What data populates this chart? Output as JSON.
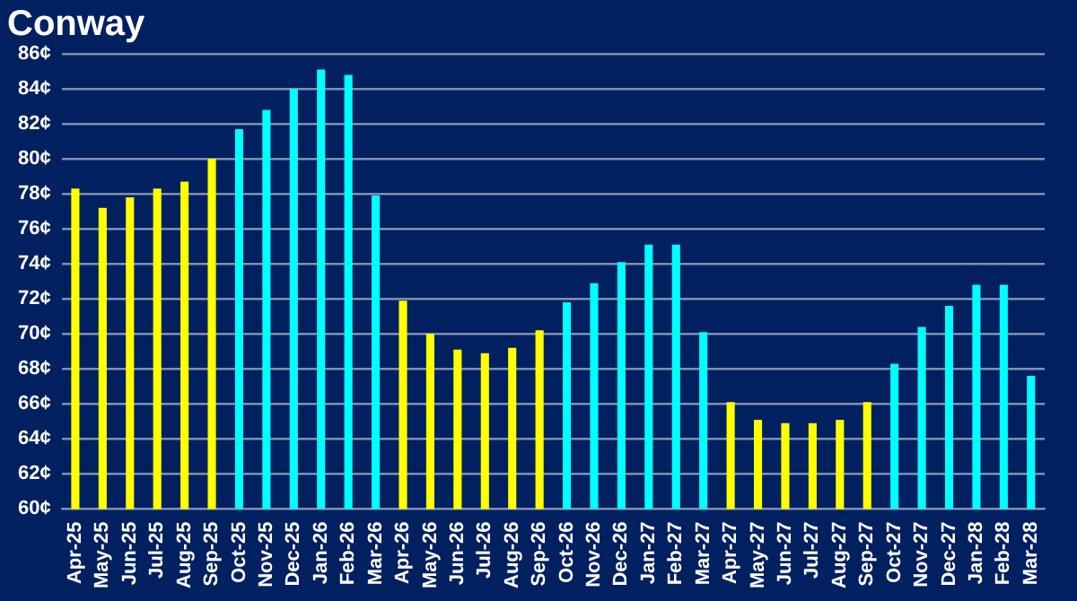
{
  "chart_data": {
    "type": "bar",
    "title": "Conway",
    "categories": [
      "Apr-25",
      "May-25",
      "Jun-25",
      "Jul-25",
      "Aug-25",
      "Sep-25",
      "Oct-25",
      "Nov-25",
      "Dec-25",
      "Jan-26",
      "Feb-26",
      "Mar-26",
      "Apr-26",
      "May-26",
      "Jun-26",
      "Jul-26",
      "Aug-26",
      "Sep-26",
      "Oct-26",
      "Nov-26",
      "Dec-26",
      "Jan-27",
      "Feb-27",
      "Mar-27",
      "Apr-27",
      "May-27",
      "Jun-27",
      "Jul-27",
      "Aug-27",
      "Sep-27",
      "Oct-27",
      "Nov-27",
      "Dec-27",
      "Jan-28",
      "Feb-28",
      "Mar-28"
    ],
    "values": [
      78.3,
      77.2,
      77.8,
      78.3,
      78.7,
      80.0,
      81.7,
      82.8,
      84.0,
      85.1,
      84.8,
      77.9,
      71.9,
      70.0,
      69.1,
      68.9,
      69.2,
      70.2,
      71.8,
      72.9,
      74.1,
      75.1,
      75.1,
      70.1,
      66.1,
      65.1,
      64.9,
      64.9,
      65.1,
      66.1,
      68.3,
      70.4,
      71.6,
      72.8,
      72.8,
      67.6
    ],
    "colors": [
      "#ffff00",
      "#ffff00",
      "#ffff00",
      "#ffff00",
      "#ffff00",
      "#ffff00",
      "#00ffff",
      "#00ffff",
      "#00ffff",
      "#00ffff",
      "#00ffff",
      "#00ffff",
      "#ffff00",
      "#ffff00",
      "#ffff00",
      "#ffff00",
      "#ffff00",
      "#ffff00",
      "#00ffff",
      "#00ffff",
      "#00ffff",
      "#00ffff",
      "#00ffff",
      "#00ffff",
      "#ffff00",
      "#ffff00",
      "#ffff00",
      "#ffff00",
      "#ffff00",
      "#ffff00",
      "#00ffff",
      "#00ffff",
      "#00ffff",
      "#00ffff",
      "#00ffff",
      "#00ffff"
    ],
    "ylim": [
      60,
      86
    ],
    "yticks": [
      {
        "value": 60,
        "label": "60¢"
      },
      {
        "value": 62,
        "label": "62¢"
      },
      {
        "value": 64,
        "label": "64¢"
      },
      {
        "value": 66,
        "label": "66¢"
      },
      {
        "value": 68,
        "label": "68¢"
      },
      {
        "value": 70,
        "label": "70¢"
      },
      {
        "value": 72,
        "label": "72¢"
      },
      {
        "value": 74,
        "label": "74¢"
      },
      {
        "value": 76,
        "label": "76¢"
      },
      {
        "value": 78,
        "label": "78¢"
      },
      {
        "value": 80,
        "label": "80¢"
      },
      {
        "value": 82,
        "label": "82¢"
      },
      {
        "value": 84,
        "label": "84¢"
      },
      {
        "value": 86,
        "label": "86¢"
      }
    ],
    "grid": "y",
    "legend": false
  }
}
